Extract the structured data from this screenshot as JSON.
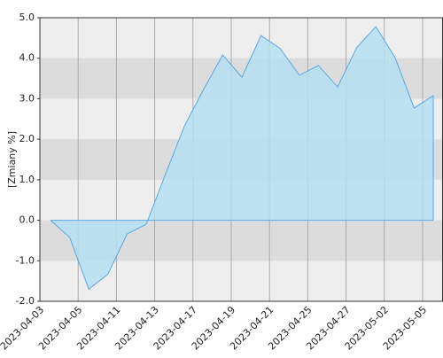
{
  "chart_data": {
    "type": "area",
    "y_label": "[Zmiany %]",
    "xticks": [
      "2023-04-03",
      "2023-04-05",
      "2023-04-11",
      "2023-04-13",
      "2023-04-17",
      "2023-04-19",
      "2023-04-21",
      "2023-04-25",
      "2023-04-27",
      "2023-05-02",
      "2023-05-05"
    ],
    "values": [
      0.0,
      -0.42,
      -1.7,
      -1.33,
      -0.34,
      -0.1,
      1.13,
      2.33,
      3.23,
      4.08,
      3.53,
      4.56,
      4.24,
      3.58,
      3.82,
      3.29,
      4.26,
      4.78,
      4.02,
      2.77,
      3.08
    ],
    "color": "#5aa6e6",
    "fill": "#b5dff2",
    "ylim": [
      -2,
      5
    ],
    "yticks": [
      {
        "value": -2,
        "label": "-2.0"
      },
      {
        "value": -1,
        "label": "-1.0"
      },
      {
        "value": 0,
        "label": "0.0"
      },
      {
        "value": 1,
        "label": "1.0"
      },
      {
        "value": 2,
        "label": "2.0"
      },
      {
        "value": 3,
        "label": "3.0"
      },
      {
        "value": 4,
        "label": "4.0"
      },
      {
        "value": 5,
        "label": "5.0"
      }
    ],
    "grid": true
  }
}
